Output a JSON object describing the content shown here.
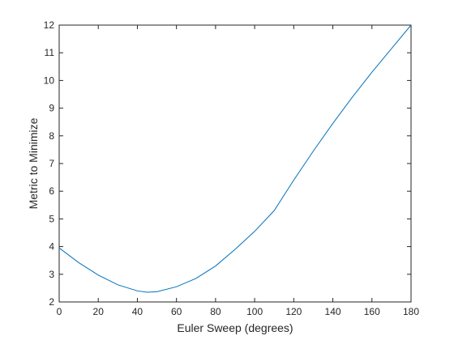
{
  "chart_data": {
    "type": "line",
    "xlabel": "Euler Sweep (degrees)",
    "ylabel": "Metric to Minimize",
    "x": [
      0,
      10,
      20,
      30,
      40,
      45,
      50,
      60,
      70,
      80,
      90,
      100,
      110,
      120,
      130,
      140,
      150,
      160,
      170,
      180
    ],
    "series": [
      {
        "color": "#0072BD",
        "values": [
          3.95,
          3.42,
          2.97,
          2.62,
          2.4,
          2.35,
          2.37,
          2.55,
          2.85,
          3.3,
          3.9,
          4.55,
          5.3,
          6.4,
          7.45,
          8.45,
          9.4,
          10.3,
          11.15,
          12
        ]
      }
    ],
    "xlim": [
      0,
      180
    ],
    "xticks": [
      0,
      20,
      40,
      60,
      80,
      100,
      120,
      140,
      160,
      180
    ],
    "ylim": [
      2,
      12
    ],
    "yticks": [
      2,
      3,
      4,
      5,
      6,
      7,
      8,
      9,
      10,
      11,
      12
    ]
  }
}
